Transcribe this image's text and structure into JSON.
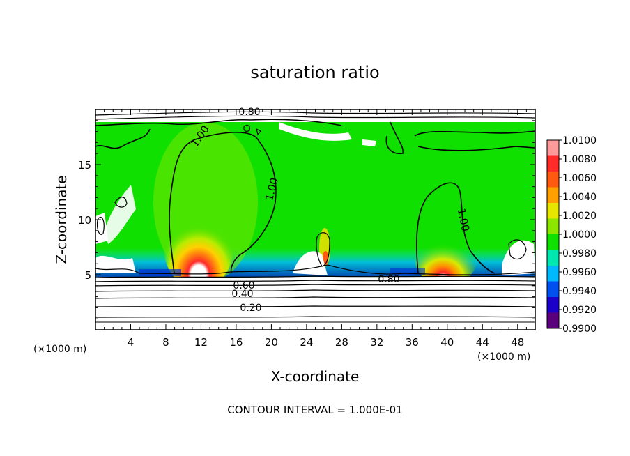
{
  "chart_data": {
    "type": "heatmap",
    "title": "saturation ratio",
    "xlabel": "X-coordinate",
    "ylabel": "Z-coordinate",
    "x_unit_left": "(×1000 m)",
    "x_unit_right": "(×1000 m)",
    "footer": "CONTOUR INTERVAL = 1.000E-01",
    "xlim": [
      0,
      50
    ],
    "ylim": [
      0,
      20
    ],
    "x_ticks": [
      4,
      8,
      12,
      16,
      20,
      24,
      28,
      32,
      36,
      40,
      44,
      48
    ],
    "y_ticks": [
      5,
      10,
      15
    ],
    "colorbar": {
      "levels": [
        "1.0100",
        "1.0080",
        "1.0060",
        "1.0040",
        "1.0020",
        "1.0000",
        "0.9980",
        "0.9960",
        "0.9940",
        "0.9920",
        "0.9900"
      ],
      "colors": [
        "#ff9a9a",
        "#ff2a2a",
        "#ff5a10",
        "#ffa000",
        "#e6e600",
        "#8ce600",
        "#10e000",
        "#00e8b0",
        "#00b8ff",
        "#0050f0",
        "#1a00c8",
        "#5a007a"
      ]
    },
    "contour_labels": [
      "0.80",
      "1.00",
      "1.00",
      "1.00",
      "0.80",
      "0.60",
      "0.40",
      "0.20"
    ]
  }
}
